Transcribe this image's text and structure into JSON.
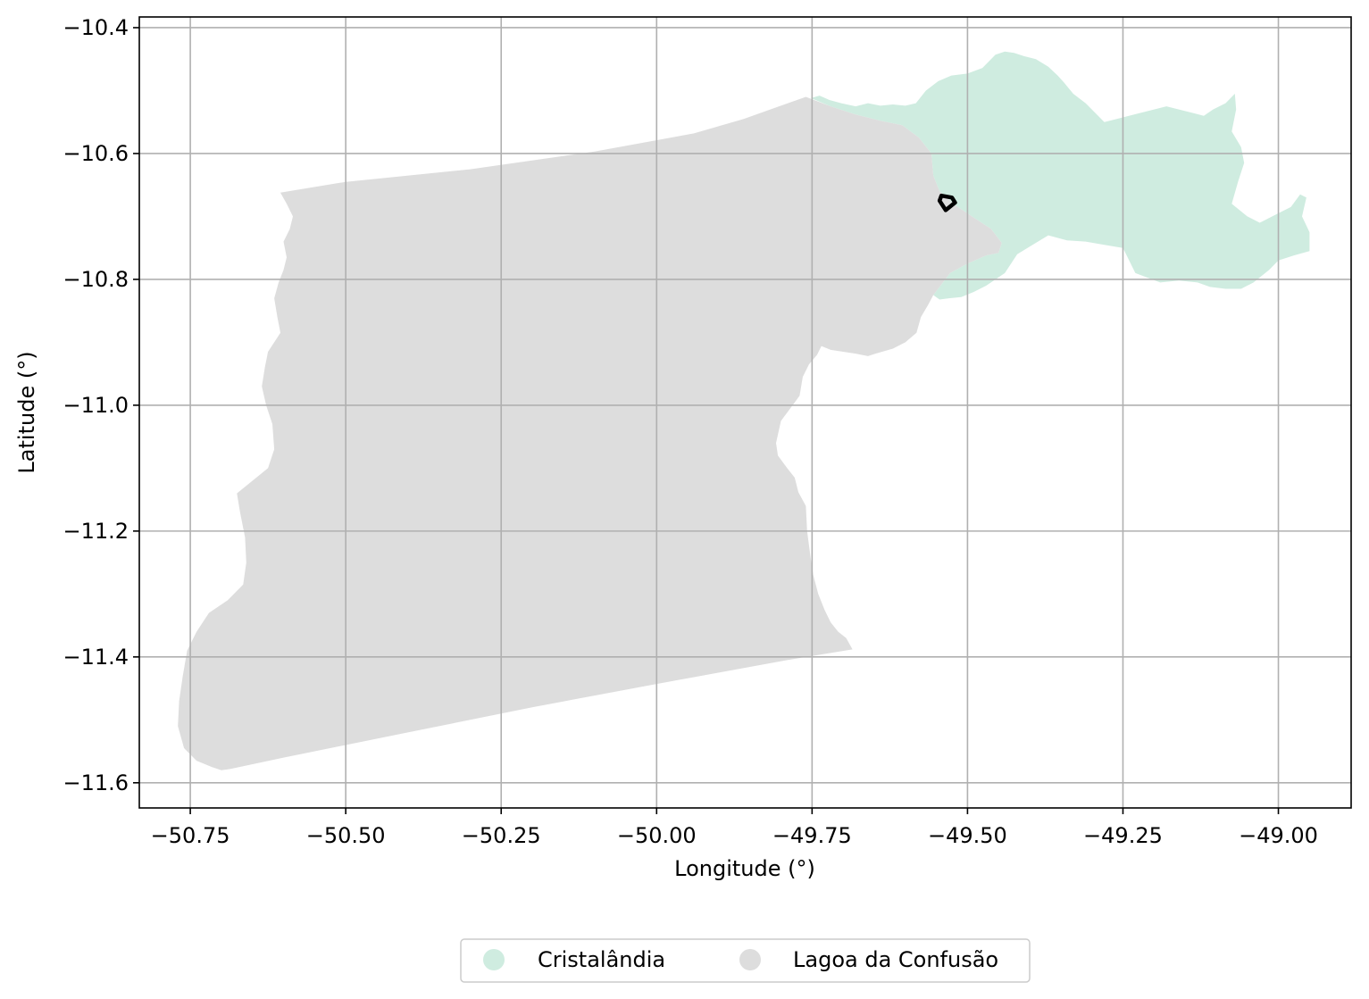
{
  "chart_data": {
    "type": "map",
    "xlabel": "Longitude (°)",
    "ylabel": "Latitude (°)",
    "xlim": [
      -50.832,
      -48.883
    ],
    "ylim": [
      -11.64,
      -10.383
    ],
    "xticks": [
      {
        "value": -50.75,
        "label": "−50.75"
      },
      {
        "value": -50.5,
        "label": "−50.50"
      },
      {
        "value": -50.25,
        "label": "−50.25"
      },
      {
        "value": -50.0,
        "label": "−50.00"
      },
      {
        "value": -49.75,
        "label": "−49.75"
      },
      {
        "value": -49.5,
        "label": "−49.50"
      },
      {
        "value": -49.25,
        "label": "−49.25"
      },
      {
        "value": -49.0,
        "label": "−49.00"
      }
    ],
    "yticks": [
      {
        "value": -10.4,
        "label": "−10.4"
      },
      {
        "value": -10.6,
        "label": "−10.6"
      },
      {
        "value": -10.8,
        "label": "−10.8"
      },
      {
        "value": -11.0,
        "label": "−11.0"
      },
      {
        "value": -11.2,
        "label": "−11.2"
      },
      {
        "value": -11.4,
        "label": "−11.4"
      },
      {
        "value": -11.6,
        "label": "−11.6"
      }
    ],
    "grid": true,
    "legend_position": "bottom-center",
    "regions": [
      {
        "name": "Cristalândia",
        "color": "#cfece0",
        "polygon": [
          [
            -49.752,
            -10.512
          ],
          [
            -49.738,
            -10.508
          ],
          [
            -49.722,
            -10.515
          ],
          [
            -49.703,
            -10.52
          ],
          [
            -49.68,
            -10.525
          ],
          [
            -49.66,
            -10.52
          ],
          [
            -49.64,
            -10.524
          ],
          [
            -49.62,
            -10.522
          ],
          [
            -49.6,
            -10.524
          ],
          [
            -49.583,
            -10.52
          ],
          [
            -49.567,
            -10.5
          ],
          [
            -49.547,
            -10.485
          ],
          [
            -49.526,
            -10.476
          ],
          [
            -49.5,
            -10.473
          ],
          [
            -49.476,
            -10.464
          ],
          [
            -49.455,
            -10.443
          ],
          [
            -49.44,
            -10.438
          ],
          [
            -49.425,
            -10.44
          ],
          [
            -49.41,
            -10.445
          ],
          [
            -49.39,
            -10.45
          ],
          [
            -49.37,
            -10.462
          ],
          [
            -49.355,
            -10.476
          ],
          [
            -49.345,
            -10.487
          ],
          [
            -49.33,
            -10.505
          ],
          [
            -49.31,
            -10.52
          ],
          [
            -49.295,
            -10.535
          ],
          [
            -49.28,
            -10.55
          ],
          [
            -49.26,
            -10.545
          ],
          [
            -49.22,
            -10.535
          ],
          [
            -49.18,
            -10.525
          ],
          [
            -49.14,
            -10.535
          ],
          [
            -49.12,
            -10.54
          ],
          [
            -49.105,
            -10.53
          ],
          [
            -49.085,
            -10.52
          ],
          [
            -49.07,
            -10.505
          ],
          [
            -49.068,
            -10.53
          ],
          [
            -49.075,
            -10.565
          ],
          [
            -49.06,
            -10.59
          ],
          [
            -49.055,
            -10.615
          ],
          [
            -49.065,
            -10.645
          ],
          [
            -49.075,
            -10.68
          ],
          [
            -49.05,
            -10.7
          ],
          [
            -49.03,
            -10.71
          ],
          [
            -49.0,
            -10.695
          ],
          [
            -48.98,
            -10.685
          ],
          [
            -48.965,
            -10.665
          ],
          [
            -48.955,
            -10.67
          ],
          [
            -48.962,
            -10.7
          ],
          [
            -48.95,
            -10.725
          ],
          [
            -48.95,
            -10.755
          ],
          [
            -48.975,
            -10.762
          ],
          [
            -49.0,
            -10.77
          ],
          [
            -49.015,
            -10.785
          ],
          [
            -49.04,
            -10.805
          ],
          [
            -49.06,
            -10.815
          ],
          [
            -49.085,
            -10.815
          ],
          [
            -49.11,
            -10.812
          ],
          [
            -49.13,
            -10.805
          ],
          [
            -49.16,
            -10.802
          ],
          [
            -49.19,
            -10.805
          ],
          [
            -49.23,
            -10.79
          ],
          [
            -49.24,
            -10.77
          ],
          [
            -49.25,
            -10.75
          ],
          [
            -49.28,
            -10.745
          ],
          [
            -49.31,
            -10.74
          ],
          [
            -49.34,
            -10.738
          ],
          [
            -49.37,
            -10.73
          ],
          [
            -49.39,
            -10.742
          ],
          [
            -49.42,
            -10.76
          ],
          [
            -49.44,
            -10.79
          ],
          [
            -49.47,
            -10.81
          ],
          [
            -49.49,
            -10.82
          ],
          [
            -49.51,
            -10.828
          ],
          [
            -49.53,
            -10.83
          ],
          [
            -49.545,
            -10.832
          ],
          [
            -49.555,
            -10.825
          ],
          [
            -49.528,
            -10.79
          ],
          [
            -49.5,
            -10.775
          ],
          [
            -49.47,
            -10.762
          ],
          [
            -49.45,
            -10.758
          ],
          [
            -49.445,
            -10.742
          ],
          [
            -49.462,
            -10.72
          ],
          [
            -49.49,
            -10.702
          ],
          [
            -49.52,
            -10.682
          ],
          [
            -49.545,
            -10.66
          ],
          [
            -49.555,
            -10.635
          ],
          [
            -49.558,
            -10.6
          ],
          [
            -49.578,
            -10.575
          ],
          [
            -49.605,
            -10.555
          ],
          [
            -49.64,
            -10.548
          ],
          [
            -49.68,
            -10.538
          ],
          [
            -49.72,
            -10.525
          ]
        ]
      },
      {
        "name": "Lagoa da Confusão",
        "color": "#dddddd",
        "polygon": [
          [
            -50.605,
            -10.662
          ],
          [
            -50.5,
            -10.645
          ],
          [
            -50.3,
            -10.625
          ],
          [
            -50.1,
            -10.597
          ],
          [
            -49.94,
            -10.568
          ],
          [
            -49.86,
            -10.545
          ],
          [
            -49.76,
            -10.51
          ],
          [
            -49.72,
            -10.525
          ],
          [
            -49.68,
            -10.538
          ],
          [
            -49.64,
            -10.548
          ],
          [
            -49.605,
            -10.555
          ],
          [
            -49.578,
            -10.575
          ],
          [
            -49.558,
            -10.6
          ],
          [
            -49.555,
            -10.635
          ],
          [
            -49.545,
            -10.66
          ],
          [
            -49.52,
            -10.682
          ],
          [
            -49.49,
            -10.702
          ],
          [
            -49.462,
            -10.72
          ],
          [
            -49.445,
            -10.742
          ],
          [
            -49.45,
            -10.758
          ],
          [
            -49.47,
            -10.762
          ],
          [
            -49.5,
            -10.775
          ],
          [
            -49.528,
            -10.79
          ],
          [
            -49.555,
            -10.825
          ],
          [
            -49.563,
            -10.84
          ],
          [
            -49.575,
            -10.86
          ],
          [
            -49.582,
            -10.885
          ],
          [
            -49.6,
            -10.9
          ],
          [
            -49.62,
            -10.91
          ],
          [
            -49.648,
            -10.918
          ],
          [
            -49.66,
            -10.922
          ],
          [
            -49.68,
            -10.918
          ],
          [
            -49.7,
            -10.915
          ],
          [
            -49.72,
            -10.912
          ],
          [
            -49.735,
            -10.906
          ],
          [
            -49.742,
            -10.92
          ],
          [
            -49.755,
            -10.935
          ],
          [
            -49.765,
            -10.955
          ],
          [
            -49.77,
            -10.985
          ],
          [
            -49.785,
            -11.005
          ],
          [
            -49.8,
            -11.025
          ],
          [
            -49.808,
            -11.06
          ],
          [
            -49.805,
            -11.08
          ],
          [
            -49.79,
            -11.1
          ],
          [
            -49.778,
            -11.115
          ],
          [
            -49.772,
            -11.138
          ],
          [
            -49.76,
            -11.16
          ],
          [
            -49.758,
            -11.2
          ],
          [
            -49.752,
            -11.245
          ],
          [
            -49.748,
            -11.27
          ],
          [
            -49.74,
            -11.3
          ],
          [
            -49.73,
            -11.325
          ],
          [
            -49.72,
            -11.345
          ],
          [
            -49.708,
            -11.36
          ],
          [
            -49.695,
            -11.37
          ],
          [
            -49.685,
            -11.388
          ],
          [
            -49.79,
            -11.405
          ],
          [
            -50.0,
            -11.443
          ],
          [
            -50.2,
            -11.48
          ],
          [
            -50.4,
            -11.52
          ],
          [
            -50.6,
            -11.56
          ],
          [
            -50.685,
            -11.578
          ],
          [
            -50.7,
            -11.58
          ],
          [
            -50.715,
            -11.575
          ],
          [
            -50.74,
            -11.565
          ],
          [
            -50.76,
            -11.545
          ],
          [
            -50.77,
            -11.51
          ],
          [
            -50.768,
            -11.47
          ],
          [
            -50.762,
            -11.43
          ],
          [
            -50.755,
            -11.39
          ],
          [
            -50.74,
            -11.36
          ],
          [
            -50.72,
            -11.33
          ],
          [
            -50.69,
            -11.31
          ],
          [
            -50.665,
            -11.285
          ],
          [
            -50.66,
            -11.25
          ],
          [
            -50.662,
            -11.21
          ],
          [
            -50.67,
            -11.17
          ],
          [
            -50.675,
            -11.14
          ],
          [
            -50.65,
            -11.12
          ],
          [
            -50.625,
            -11.1
          ],
          [
            -50.615,
            -11.07
          ],
          [
            -50.618,
            -11.03
          ],
          [
            -50.628,
            -11.0
          ],
          [
            -50.635,
            -10.97
          ],
          [
            -50.63,
            -10.94
          ],
          [
            -50.625,
            -10.915
          ],
          [
            -50.615,
            -10.9
          ],
          [
            -50.605,
            -10.885
          ],
          [
            -50.61,
            -10.86
          ],
          [
            -50.615,
            -10.83
          ],
          [
            -50.608,
            -10.805
          ],
          [
            -50.6,
            -10.785
          ],
          [
            -50.595,
            -10.765
          ],
          [
            -50.6,
            -10.74
          ],
          [
            -50.59,
            -10.72
          ],
          [
            -50.585,
            -10.7
          ],
          [
            -50.595,
            -10.68
          ]
        ]
      }
    ],
    "marker": {
      "outline_color": "#000000",
      "polygon": [
        [
          -49.542,
          -10.667
        ],
        [
          -49.525,
          -10.67
        ],
        [
          -49.52,
          -10.678
        ],
        [
          -49.535,
          -10.69
        ],
        [
          -49.545,
          -10.675
        ]
      ]
    },
    "legend": [
      {
        "label": "Cristalândia",
        "color": "#cfece0"
      },
      {
        "label": "Lagoa da Confusão",
        "color": "#dddddd"
      }
    ]
  }
}
